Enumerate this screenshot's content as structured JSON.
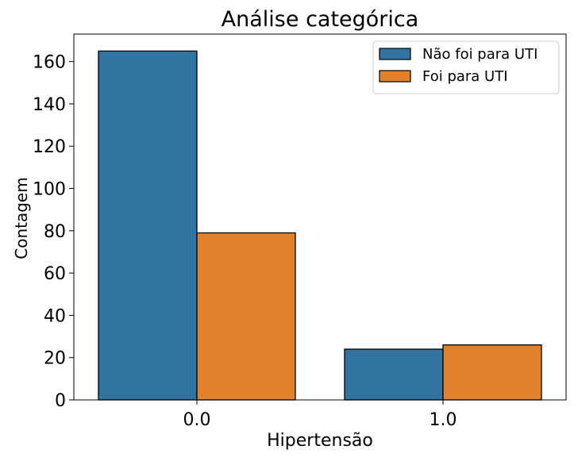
{
  "chart_data": {
    "type": "bar",
    "title": "Análise categórica",
    "xlabel": "Hipertensão",
    "ylabel": "Contagem",
    "categories": [
      "0.0",
      "1.0"
    ],
    "series": [
      {
        "name": "Não foi para UTI",
        "color": "#3274a1",
        "values": [
          165,
          24
        ]
      },
      {
        "name": "Foi para UTI",
        "color": "#e1812c",
        "values": [
          79,
          26
        ]
      }
    ],
    "ylim": [
      0,
      173
    ],
    "yticks": [
      0,
      20,
      40,
      60,
      80,
      100,
      120,
      140,
      160
    ],
    "grid": false,
    "legend_position": "top-right"
  }
}
